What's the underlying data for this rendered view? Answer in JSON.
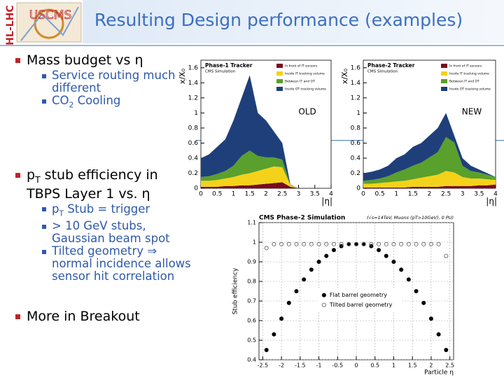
{
  "slide": {
    "title": "Resulting Design performance (examples)",
    "logo_side_text": "HL-LHC",
    "logo_text": "USCMS",
    "bullets": [
      {
        "segments": [
          {
            "text": "Mass budget vs η"
          }
        ],
        "items": [
          {
            "segments": [
              {
                "text": "Service routing much different"
              }
            ]
          },
          {
            "segments": [
              {
                "text": "CO"
              },
              {
                "text": "2",
                "sub": true
              },
              {
                "text": " Cooling"
              }
            ]
          }
        ]
      },
      {
        "segments": [
          {
            "text": "p"
          },
          {
            "text": "T",
            "sub": true
          },
          {
            "text": " stub efficiency in TBPS Layer 1 vs. η"
          }
        ],
        "items": [
          {
            "segments": [
              {
                "text": "p"
              },
              {
                "text": "T",
                "sub": true
              },
              {
                "text": " Stub = trigger"
              }
            ]
          },
          {
            "segments": [
              {
                "text": "> 10 GeV stubs, Gaussian beam spot"
              }
            ]
          },
          {
            "segments": [
              {
                "text": "Tilted geometry ⇒ normal incidence allows sensor hit correlation"
              }
            ]
          }
        ]
      },
      {
        "segments": [
          {
            "text": "More in Breakout"
          }
        ],
        "items": []
      }
    ]
  },
  "chart_data": [
    {
      "type": "area",
      "title": "Phase-1 Tracker",
      "subtitle": "CMS Simulation",
      "annotation": "OLD",
      "x_label": "|η|",
      "y_label": "x/X₀",
      "grid": false,
      "x": [
        0,
        0.25,
        0.5,
        0.75,
        1,
        1.25,
        1.5,
        1.75,
        2,
        2.25,
        2.5,
        2.75,
        3
      ],
      "series": [
        {
          "name": "In front of IT sensors",
          "color": "#7a0a1e",
          "values": [
            0.02,
            0.02,
            0.02,
            0.03,
            0.03,
            0.04,
            0.04,
            0.05,
            0.06,
            0.07,
            0.08,
            0.02,
            0
          ]
        },
        {
          "name": "Inside IT tracking volume",
          "color": "#f5d21a",
          "values": [
            0.08,
            0.08,
            0.09,
            0.1,
            0.12,
            0.14,
            0.16,
            0.18,
            0.2,
            0.22,
            0.2,
            0.02,
            0
          ]
        },
        {
          "name": "Between IT and OT",
          "color": "#5aa02c",
          "values": [
            0.05,
            0.06,
            0.08,
            0.1,
            0.15,
            0.25,
            0.3,
            0.2,
            0.15,
            0.12,
            0.1,
            0.01,
            0
          ]
        },
        {
          "name": "Inside OT tracking volume",
          "color": "#1f3f7a",
          "values": [
            0.25,
            0.29,
            0.36,
            0.42,
            0.6,
            0.77,
            1.0,
            0.57,
            0.49,
            0.34,
            0.22,
            0,
            0
          ]
        }
      ],
      "xlim": [
        0,
        4
      ],
      "xticks": [
        0,
        0.5,
        1,
        1.5,
        2,
        2.5,
        3,
        3.5,
        4
      ],
      "ylim": [
        0,
        1.7
      ],
      "yticks": [
        0,
        0.2,
        0.4,
        0.6,
        0.8,
        1,
        1.2,
        1.4,
        1.6
      ]
    },
    {
      "type": "area",
      "title": "Phase-2 Tracker",
      "subtitle": "CMS Simulation",
      "annotation": "NEW",
      "x_label": "|η|",
      "y_label": "x/X₀",
      "grid": false,
      "x": [
        0,
        0.25,
        0.5,
        0.75,
        1,
        1.25,
        1.5,
        1.75,
        2,
        2.25,
        2.5,
        2.75,
        3,
        3.25,
        3.5,
        3.75,
        4
      ],
      "series": [
        {
          "name": "In front of IT sensors",
          "color": "#7a0a1e",
          "values": [
            0.01,
            0.01,
            0.01,
            0.01,
            0.01,
            0.01,
            0.02,
            0.02,
            0.02,
            0.02,
            0.03,
            0.03,
            0.03,
            0.03,
            0.04,
            0.04,
            0.05
          ]
        },
        {
          "name": "Inside IT tracking volume",
          "color": "#f5d21a",
          "values": [
            0.05,
            0.05,
            0.06,
            0.07,
            0.08,
            0.09,
            0.1,
            0.12,
            0.14,
            0.16,
            0.2,
            0.18,
            0.12,
            0.1,
            0.09,
            0.08,
            0.06
          ]
        },
        {
          "name": "Between IT and OT",
          "color": "#5aa02c",
          "values": [
            0.04,
            0.05,
            0.06,
            0.08,
            0.12,
            0.15,
            0.18,
            0.2,
            0.25,
            0.3,
            0.45,
            0.4,
            0.15,
            0.1,
            0.08,
            0.06,
            0.04
          ]
        },
        {
          "name": "Inside OT tracking volume",
          "color": "#1f3f7a",
          "values": [
            0.1,
            0.11,
            0.12,
            0.14,
            0.19,
            0.2,
            0.25,
            0.26,
            0.29,
            0.32,
            0.32,
            0.09,
            0.1,
            0.07,
            0.04,
            0.02,
            0
          ]
        }
      ],
      "xlim": [
        0,
        4
      ],
      "xticks": [
        0,
        0.5,
        1,
        1.5,
        2,
        2.5,
        3,
        3.5,
        4
      ],
      "ylim": [
        0,
        1.7
      ],
      "yticks": [
        0,
        0.2,
        0.4,
        0.6,
        0.8,
        1,
        1.2,
        1.4,
        1.6
      ]
    },
    {
      "type": "scatter",
      "title": "CMS Phase-2 Simulation",
      "subtitle": "(√s=14TeV, Muons (pT>10GeV), 0 PU)",
      "x_label": "Particle η",
      "y_label": "Stub efficiency",
      "grid": true,
      "x": [
        -2.4,
        -2.2,
        -2.0,
        -1.8,
        -1.6,
        -1.4,
        -1.2,
        -1.0,
        -0.8,
        -0.6,
        -0.4,
        -0.2,
        0,
        0.2,
        0.4,
        0.6,
        0.8,
        1.0,
        1.2,
        1.4,
        1.6,
        1.8,
        2.0,
        2.2,
        2.4
      ],
      "series": [
        {
          "name": "Flat barrel geometry",
          "color": "#000000",
          "marker": "filled",
          "values": [
            0.45,
            0.53,
            0.61,
            0.69,
            0.75,
            0.81,
            0.86,
            0.9,
            0.93,
            0.96,
            0.98,
            0.99,
            0.99,
            0.99,
            0.98,
            0.96,
            0.93,
            0.9,
            0.86,
            0.81,
            0.75,
            0.69,
            0.61,
            0.53,
            0.45
          ]
        },
        {
          "name": "Tilted barrel geometry",
          "color": "#555555",
          "marker": "open",
          "values": [
            0.97,
            0.99,
            0.99,
            0.99,
            0.99,
            0.99,
            0.99,
            0.99,
            0.99,
            0.99,
            0.99,
            0.99,
            0.99,
            0.99,
            0.99,
            0.99,
            0.99,
            0.99,
            0.99,
            0.99,
            0.99,
            0.99,
            0.99,
            0.99,
            0.93
          ]
        }
      ],
      "xlim": [
        -2.6,
        2.6
      ],
      "xticks": [
        -2.5,
        -2,
        -1.5,
        -1,
        -0.5,
        0,
        0.5,
        1,
        1.5,
        2,
        2.5
      ],
      "ylim": [
        0.4,
        1.1
      ],
      "yticks": [
        0.4,
        0.5,
        0.6,
        0.7,
        0.8,
        0.9,
        1,
        1.1
      ]
    }
  ]
}
